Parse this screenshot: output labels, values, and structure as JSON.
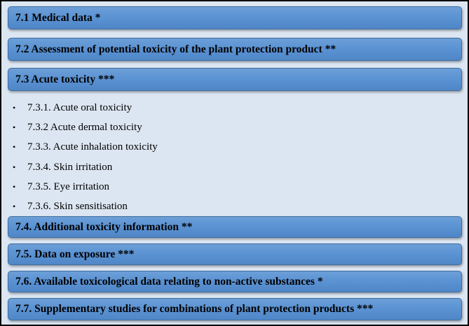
{
  "sections": [
    {
      "label": "7.1 Medical data  *"
    },
    {
      "label": "7.2 Assessment of potential toxicity of the plant protection product **"
    },
    {
      "label": "7.3 Acute toxicity ***"
    },
    {
      "label": "7.4. Additional toxicity information  **"
    },
    {
      "label": "7.5. Data on exposure ***"
    },
    {
      "label": "7.6. Available toxicological data relating to non-active substances *"
    },
    {
      "label": "7.7. Supplementary studies for combinations of plant protection products ***"
    }
  ],
  "acute_toxicity_items": [
    {
      "label": "7.3.1. Acute oral toxicity"
    },
    {
      "label": "7.3.2 Acute dermal toxicity"
    },
    {
      "label": "7.3.3. Acute inhalation toxicity"
    },
    {
      "label": "7.3.4.  Skin irritation"
    },
    {
      "label": "7.3.5.  Eye irritation"
    },
    {
      "label": "7.3.6.  Skin sensitisation"
    }
  ],
  "bullet_glyph": "•",
  "colors": {
    "background": "#dce6f2",
    "bar": "#5b93d3",
    "border": "#000000"
  }
}
